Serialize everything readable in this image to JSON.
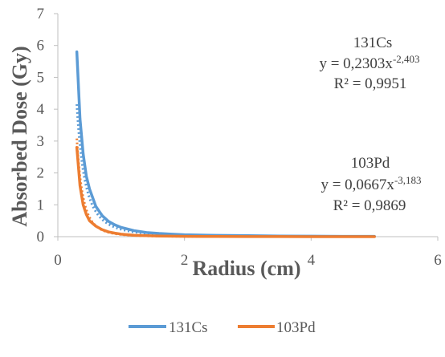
{
  "chart_data": {
    "type": "line",
    "xlabel": "Radius (cm)",
    "ylabel": "Absorbed Dose (Gy)",
    "xlim": [
      0,
      6
    ],
    "ylim": [
      0,
      7
    ],
    "xticks": [
      "0",
      "2",
      "4",
      "6"
    ],
    "yticks": [
      "0",
      "1",
      "2",
      "3",
      "4",
      "5",
      "6",
      "7"
    ],
    "grid": false,
    "legend_position": "bottom",
    "series": [
      {
        "name": "131Cs",
        "color": "#5B9BD5",
        "x": [
          0.3,
          0.35,
          0.4,
          0.45,
          0.5,
          0.6,
          0.7,
          0.8,
          0.9,
          1.0,
          1.2,
          1.4,
          1.6,
          1.8,
          2.0,
          2.5,
          3.0,
          3.5,
          4.0,
          4.5,
          5.0
        ],
        "y": [
          5.8,
          3.7,
          2.6,
          1.9,
          1.5,
          0.95,
          0.66,
          0.48,
          0.37,
          0.29,
          0.19,
          0.13,
          0.1,
          0.08,
          0.06,
          0.04,
          0.03,
          0.02,
          0.015,
          0.01,
          0.01
        ]
      },
      {
        "name": "103Pd",
        "color": "#ED7D31",
        "x": [
          0.3,
          0.35,
          0.4,
          0.45,
          0.5,
          0.6,
          0.7,
          0.8,
          0.9,
          1.0,
          1.2,
          1.4,
          1.6,
          1.8,
          2.0,
          2.5,
          3.0,
          3.5,
          4.0,
          4.5,
          5.0
        ],
        "y": [
          2.8,
          1.6,
          1.0,
          0.7,
          0.5,
          0.33,
          0.22,
          0.15,
          0.11,
          0.08,
          0.045,
          0.03,
          0.02,
          0.015,
          0.01,
          0.005,
          0.003,
          0.002,
          0.001,
          0.001,
          0.001
        ]
      }
    ],
    "trendlines": [
      {
        "series": "131Cs",
        "type": "power",
        "a": 0.2303,
        "b": -2.403,
        "label_title": "131Cs",
        "equation_prefix": "y = 0,2303x",
        "equation_exponent": "-2,403",
        "r2_label": "R² = 0,9951"
      },
      {
        "series": "103Pd",
        "type": "power",
        "a": 0.0667,
        "b": -3.183,
        "label_title": "103Pd",
        "equation_prefix": "y = 0,0667x",
        "equation_exponent": "-3,183",
        "r2_label": "R² = 0,9869"
      }
    ]
  }
}
